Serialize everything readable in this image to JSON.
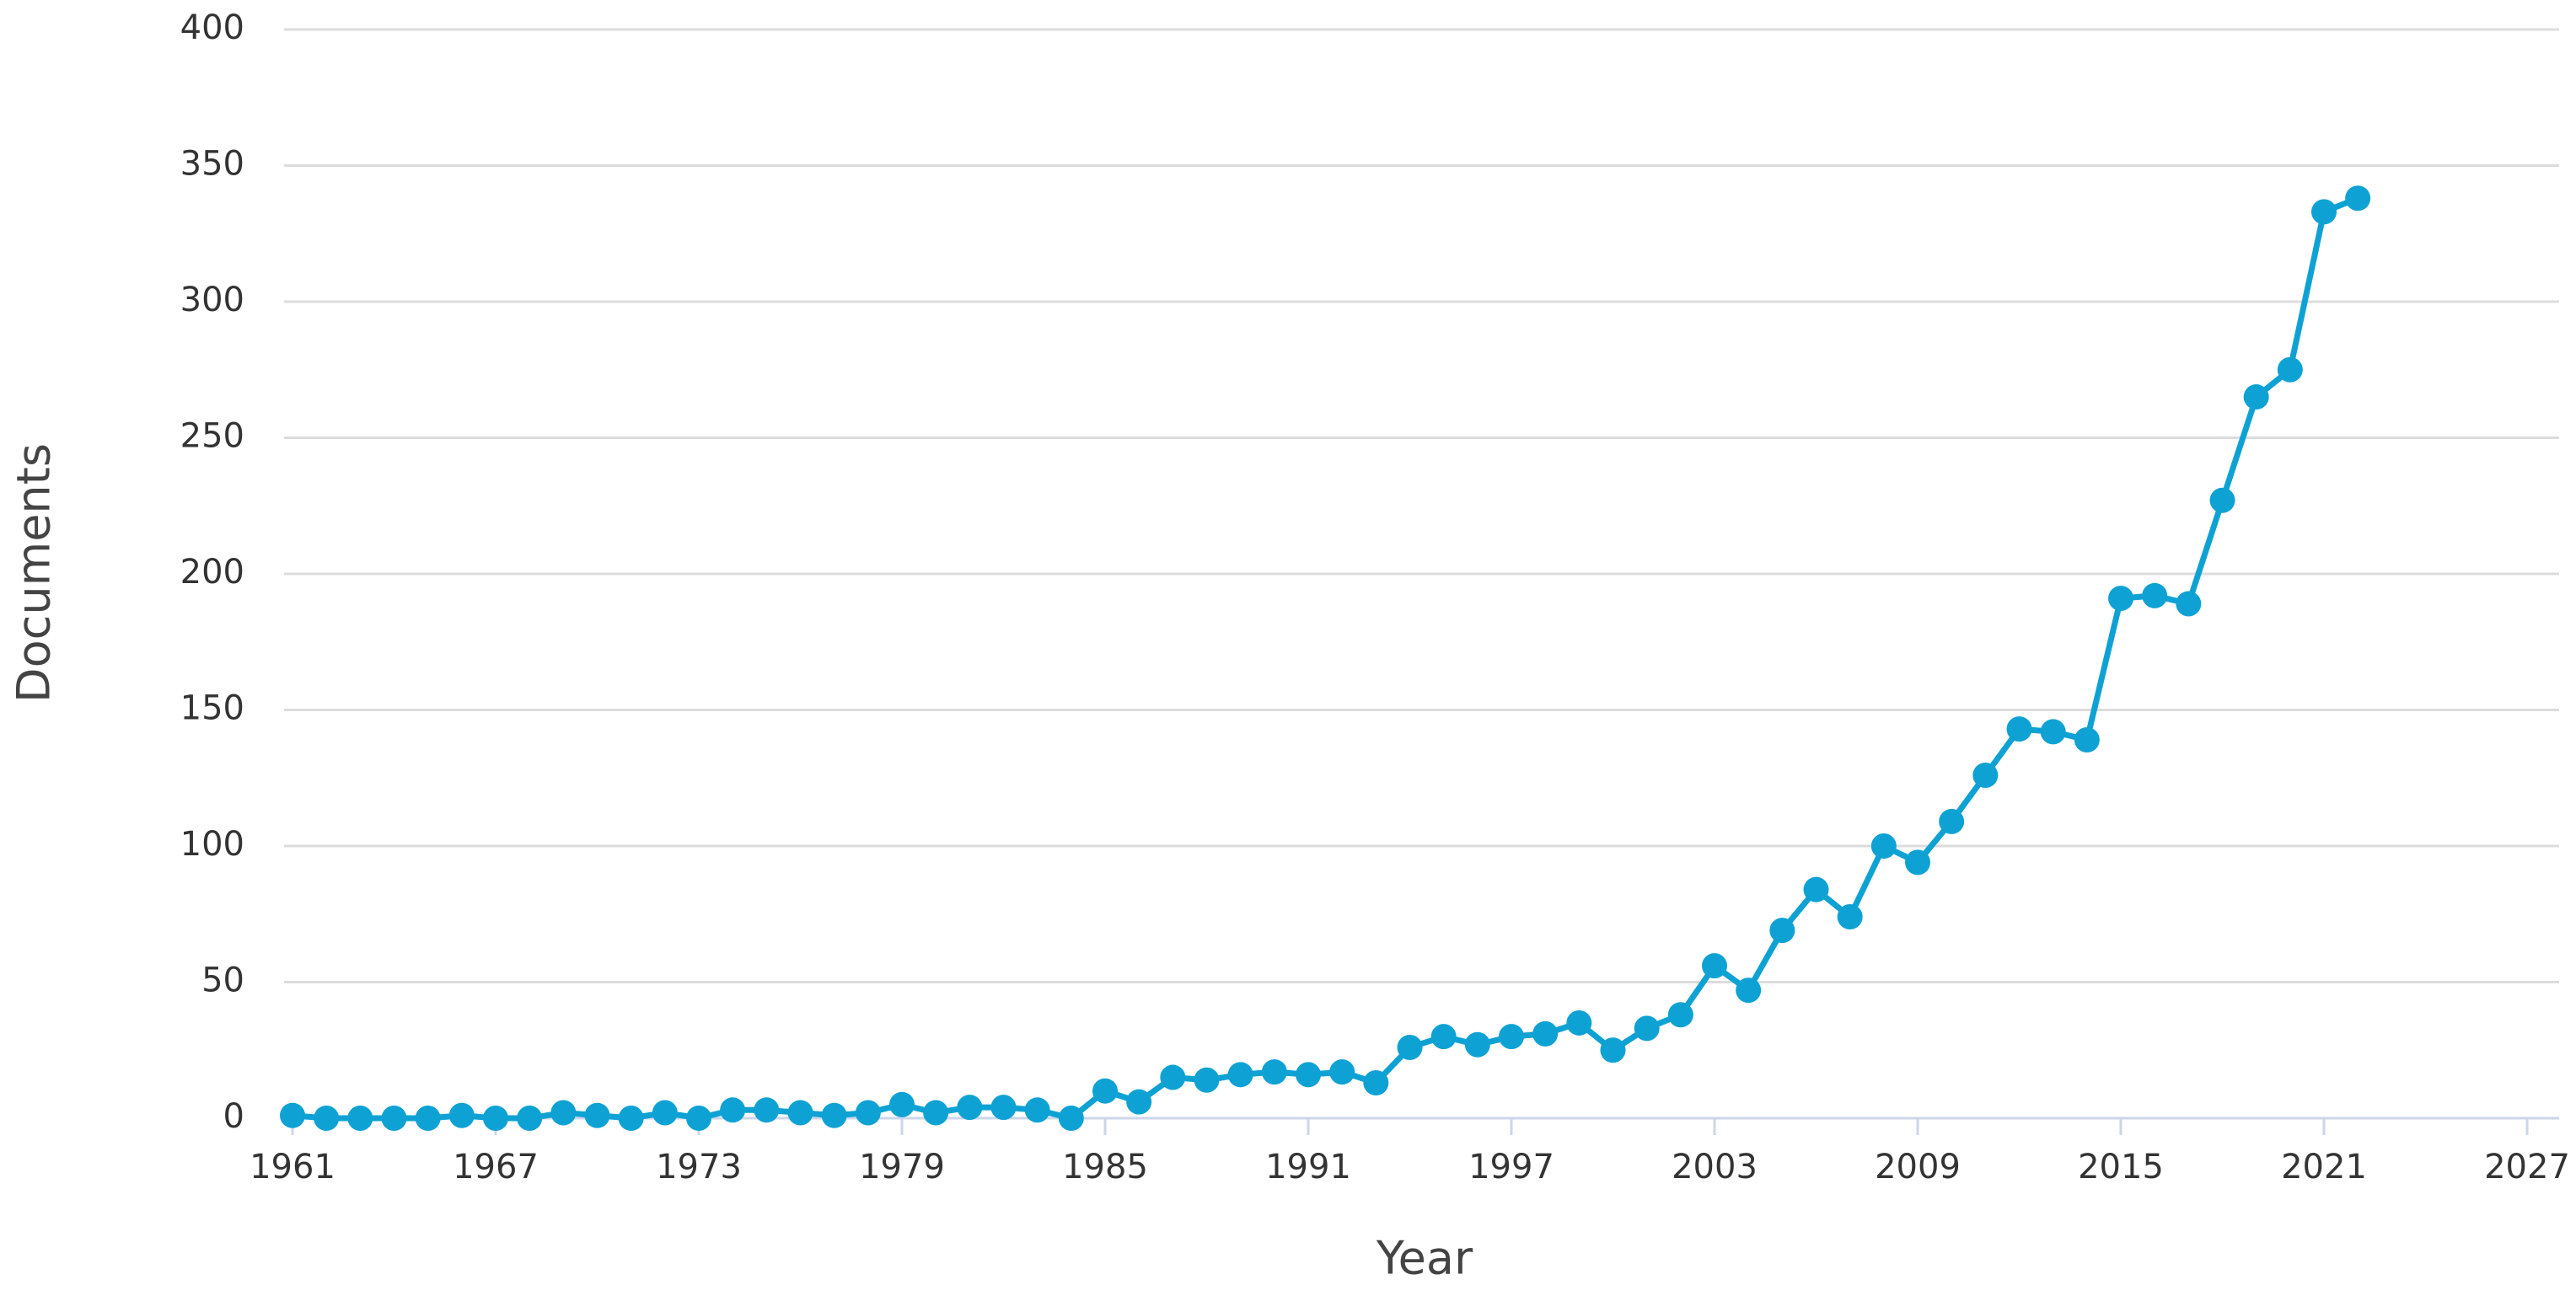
{
  "chart_data": {
    "type": "line",
    "x_label": "Year",
    "y_label": "Documents",
    "x": [
      1961,
      1962,
      1963,
      1964,
      1965,
      1966,
      1967,
      1968,
      1969,
      1970,
      1971,
      1972,
      1973,
      1974,
      1975,
      1976,
      1977,
      1978,
      1979,
      1980,
      1981,
      1982,
      1983,
      1984,
      1985,
      1986,
      1987,
      1988,
      1989,
      1990,
      1991,
      1992,
      1993,
      1994,
      1995,
      1996,
      1997,
      1998,
      1999,
      2000,
      2001,
      2002,
      2003,
      2004,
      2005,
      2006,
      2007,
      2008,
      2009,
      2010,
      2011,
      2012,
      2013,
      2014,
      2015,
      2016,
      2017,
      2018,
      2019,
      2020,
      2021,
      2022
    ],
    "values": [
      1,
      0,
      0,
      0,
      0,
      1,
      0,
      0,
      2,
      1,
      0,
      2,
      0,
      3,
      3,
      2,
      1,
      2,
      5,
      2,
      4,
      4,
      3,
      0,
      10,
      6,
      15,
      14,
      16,
      17,
      16,
      17,
      13,
      26,
      30,
      27,
      30,
      31,
      35,
      25,
      33,
      38,
      56,
      47,
      69,
      84,
      74,
      100,
      94,
      109,
      126,
      143,
      142,
      139,
      191,
      192,
      189,
      227,
      265,
      275,
      333,
      338
    ],
    "color": "#0ea2d4",
    "xlim": [
      1961,
      2027
    ],
    "xticks": [
      1961,
      1967,
      1973,
      1979,
      1985,
      1991,
      1997,
      2003,
      2009,
      2015,
      2021,
      2027
    ],
    "ylim": [
      0,
      400
    ],
    "yticks": [
      0,
      50,
      100,
      150,
      200,
      250,
      300,
      350,
      400
    ],
    "grid": true
  }
}
